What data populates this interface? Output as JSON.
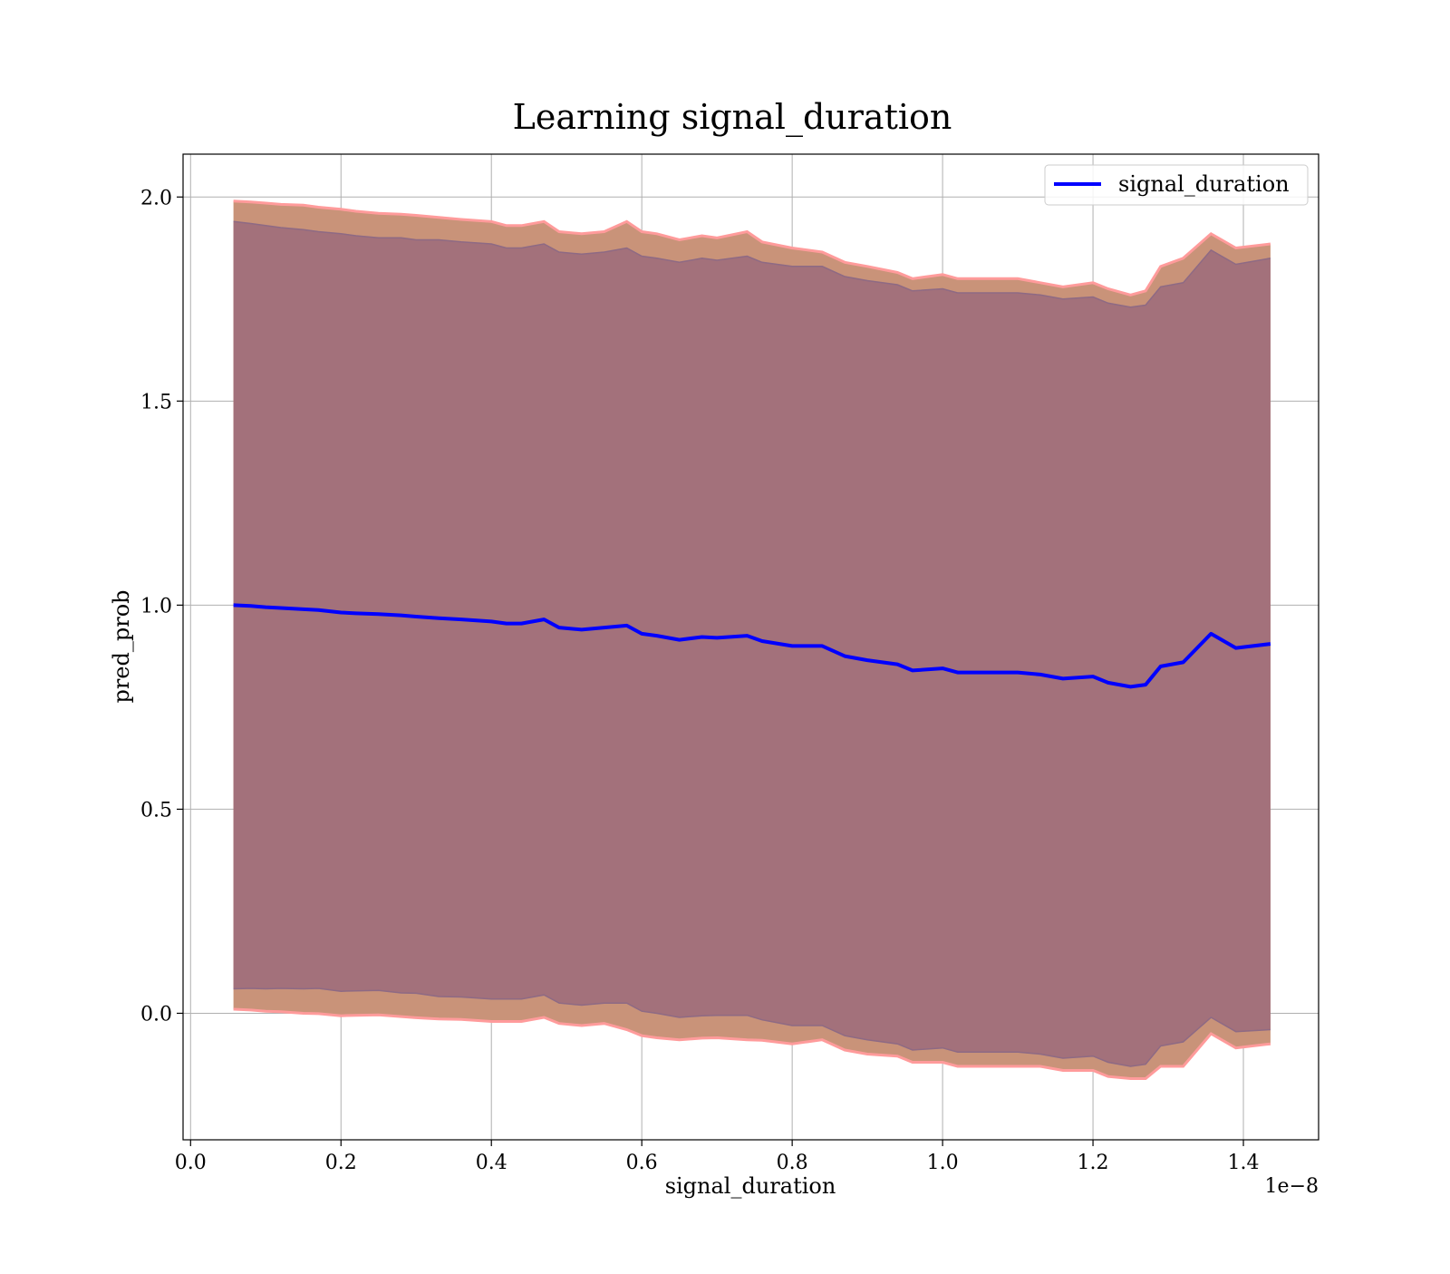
{
  "chart_data": {
    "type": "line",
    "title": "Learning signal_duration",
    "xlabel": "signal_duration",
    "ylabel": "pred_prob",
    "x_offset_label": "1e−8",
    "xlim": [
      -0.01,
      1.5
    ],
    "ylim": [
      -0.31,
      2.105
    ],
    "x_ticks": [
      0.0,
      0.2,
      0.4,
      0.6,
      0.8,
      1.0,
      1.2,
      1.4
    ],
    "x_tick_labels": [
      "0.0",
      "0.2",
      "0.4",
      "0.6",
      "0.8",
      "1.0",
      "1.2",
      "1.4"
    ],
    "y_ticks": [
      0.0,
      0.5,
      1.0,
      1.5,
      2.0
    ],
    "y_tick_labels": [
      "0.0",
      "0.5",
      "1.0",
      "1.5",
      "2.0"
    ],
    "grid": true,
    "legend": {
      "position": "top-right",
      "entries": [
        "signal_duration"
      ]
    },
    "colors": {
      "line": "#0000ff",
      "inner_band": "#a3717b",
      "outer_band": "#c99379",
      "band_edge": "#ff9b9b",
      "grid": "#b0b0b0"
    },
    "series": [
      {
        "name": "signal_duration",
        "x": [
          0.057,
          0.08,
          0.1,
          0.12,
          0.15,
          0.17,
          0.2,
          0.22,
          0.25,
          0.28,
          0.3,
          0.33,
          0.36,
          0.4,
          0.42,
          0.44,
          0.47,
          0.49,
          0.52,
          0.55,
          0.58,
          0.6,
          0.62,
          0.65,
          0.68,
          0.7,
          0.74,
          0.76,
          0.8,
          0.84,
          0.87,
          0.9,
          0.94,
          0.96,
          1.0,
          1.02,
          1.05,
          1.1,
          1.13,
          1.16,
          1.2,
          1.22,
          1.25,
          1.27,
          1.29,
          1.32,
          1.357,
          1.39,
          1.436
        ],
        "y": [
          1.0,
          0.998,
          0.995,
          0.993,
          0.99,
          0.988,
          0.982,
          0.98,
          0.978,
          0.975,
          0.972,
          0.968,
          0.965,
          0.96,
          0.955,
          0.955,
          0.965,
          0.945,
          0.94,
          0.945,
          0.95,
          0.93,
          0.925,
          0.915,
          0.922,
          0.92,
          0.925,
          0.912,
          0.9,
          0.9,
          0.875,
          0.865,
          0.855,
          0.84,
          0.845,
          0.835,
          0.835,
          0.835,
          0.83,
          0.82,
          0.825,
          0.81,
          0.8,
          0.805,
          0.85,
          0.86,
          0.93,
          0.895,
          0.905
        ],
        "inner_upper": [
          1.94,
          1.935,
          1.93,
          1.925,
          1.92,
          1.915,
          1.91,
          1.905,
          1.9,
          1.9,
          1.895,
          1.895,
          1.89,
          1.885,
          1.875,
          1.875,
          1.885,
          1.865,
          1.86,
          1.865,
          1.875,
          1.855,
          1.85,
          1.84,
          1.85,
          1.845,
          1.855,
          1.84,
          1.83,
          1.83,
          1.805,
          1.795,
          1.785,
          1.77,
          1.775,
          1.765,
          1.765,
          1.765,
          1.76,
          1.75,
          1.755,
          1.74,
          1.73,
          1.735,
          1.78,
          1.79,
          1.87,
          1.835,
          1.85
        ],
        "inner_lower": [
          0.06,
          0.061,
          0.06,
          0.061,
          0.06,
          0.061,
          0.054,
          0.055,
          0.056,
          0.05,
          0.049,
          0.041,
          0.04,
          0.035,
          0.035,
          0.035,
          0.045,
          0.025,
          0.02,
          0.025,
          0.025,
          0.005,
          0.0,
          -0.01,
          -0.006,
          -0.005,
          -0.005,
          -0.016,
          -0.03,
          -0.03,
          -0.055,
          -0.065,
          -0.075,
          -0.09,
          -0.085,
          -0.095,
          -0.095,
          -0.095,
          -0.1,
          -0.11,
          -0.105,
          -0.12,
          -0.13,
          -0.125,
          -0.08,
          -0.07,
          -0.01,
          -0.045,
          -0.04
        ],
        "outer_upper": [
          1.99,
          1.988,
          1.985,
          1.982,
          1.98,
          1.975,
          1.97,
          1.965,
          1.96,
          1.958,
          1.955,
          1.95,
          1.945,
          1.94,
          1.93,
          1.93,
          1.94,
          1.915,
          1.91,
          1.915,
          1.94,
          1.915,
          1.91,
          1.895,
          1.905,
          1.9,
          1.915,
          1.89,
          1.875,
          1.865,
          1.84,
          1.83,
          1.815,
          1.8,
          1.81,
          1.8,
          1.8,
          1.8,
          1.79,
          1.78,
          1.79,
          1.775,
          1.76,
          1.77,
          1.83,
          1.85,
          1.91,
          1.875,
          1.885
        ],
        "outer_lower": [
          0.01,
          0.008,
          0.005,
          0.004,
          0.0,
          -0.001,
          -0.006,
          -0.005,
          -0.004,
          -0.008,
          -0.011,
          -0.014,
          -0.015,
          -0.02,
          -0.02,
          -0.02,
          -0.01,
          -0.025,
          -0.03,
          -0.025,
          -0.04,
          -0.055,
          -0.06,
          -0.065,
          -0.061,
          -0.06,
          -0.065,
          -0.066,
          -0.075,
          -0.065,
          -0.09,
          -0.1,
          -0.105,
          -0.12,
          -0.12,
          -0.13,
          -0.13,
          -0.13,
          -0.13,
          -0.14,
          -0.14,
          -0.155,
          -0.16,
          -0.16,
          -0.13,
          -0.13,
          -0.05,
          -0.085,
          -0.075
        ]
      }
    ]
  }
}
